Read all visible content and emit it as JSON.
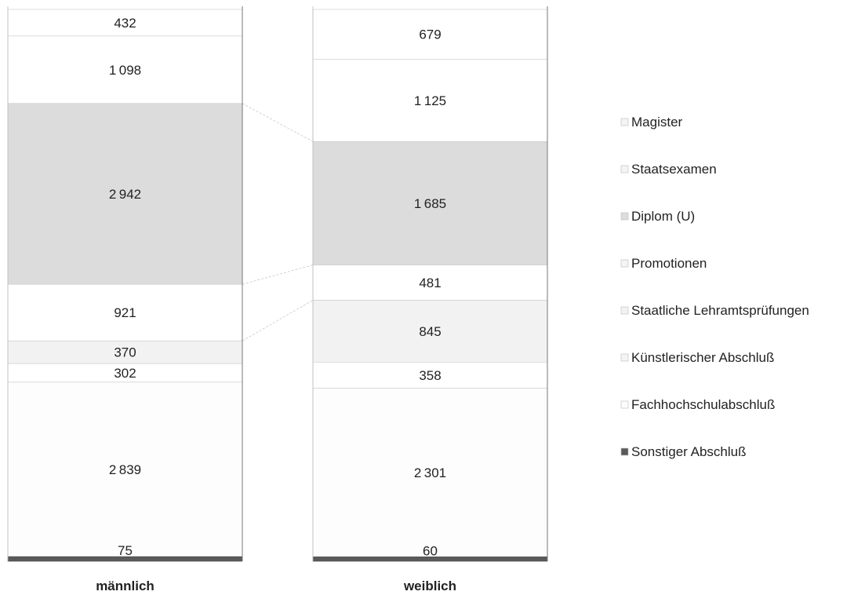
{
  "chart_data": {
    "type": "bar",
    "stacked": true,
    "normalized": true,
    "categories": [
      "männlich",
      "weiblich"
    ],
    "series": [
      {
        "name": "Magister",
        "values": [
          432,
          679
        ],
        "color": "#ffffff"
      },
      {
        "name": "Staatsexamen",
        "values": [
          1098,
          1125
        ],
        "color": "#ffffff"
      },
      {
        "name": "Diplom (U)",
        "values": [
          2942,
          1685
        ],
        "color": "#dcdcdc"
      },
      {
        "name": "Promotionen",
        "values": [
          921,
          481
        ],
        "color": "#ffffff"
      },
      {
        "name": "Staatliche Lehramtsprüfungen",
        "values": [
          370,
          845
        ],
        "color": "#f2f2f2"
      },
      {
        "name": "Künstlerischer Abschluß",
        "values": [
          302,
          358
        ],
        "color": "#ffffff"
      },
      {
        "name": "Fachhochschulabschluß",
        "values": [
          2839,
          2301
        ],
        "color": "#fdfdfd"
      },
      {
        "name": "Sonstiger Abschluß",
        "values": [
          75,
          60
        ],
        "color": "#5a5a5a"
      }
    ],
    "title": "",
    "xlabel": "",
    "ylabel": "",
    "legend_position": "right",
    "grid": false
  }
}
